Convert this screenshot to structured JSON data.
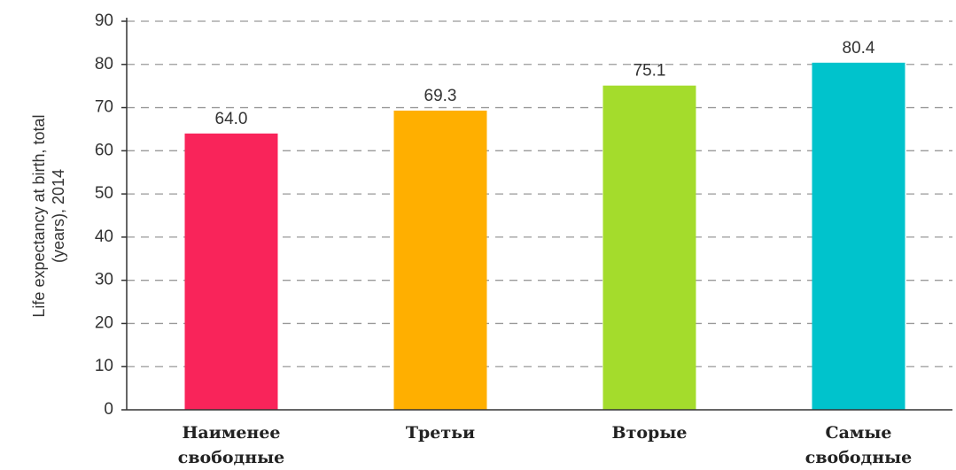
{
  "chart_data": {
    "type": "bar",
    "y_label": "Life expectancy at birth, total (years), 2014",
    "categories": [
      "Наименее свободные",
      "Третьи",
      "Вторые",
      "Самые свободные"
    ],
    "values": [
      64.0,
      69.3,
      75.1,
      80.4
    ],
    "value_labels": [
      "64.0",
      "69.3",
      "75.1",
      "80.4"
    ],
    "colors": [
      "#f9245a",
      "#ffaf00",
      "#a4dc2c",
      "#00c3cc"
    ],
    "ylim": [
      0,
      90
    ],
    "yticks": [
      0,
      10,
      20,
      30,
      40,
      50,
      60,
      70,
      80,
      90
    ],
    "grid": true
  }
}
